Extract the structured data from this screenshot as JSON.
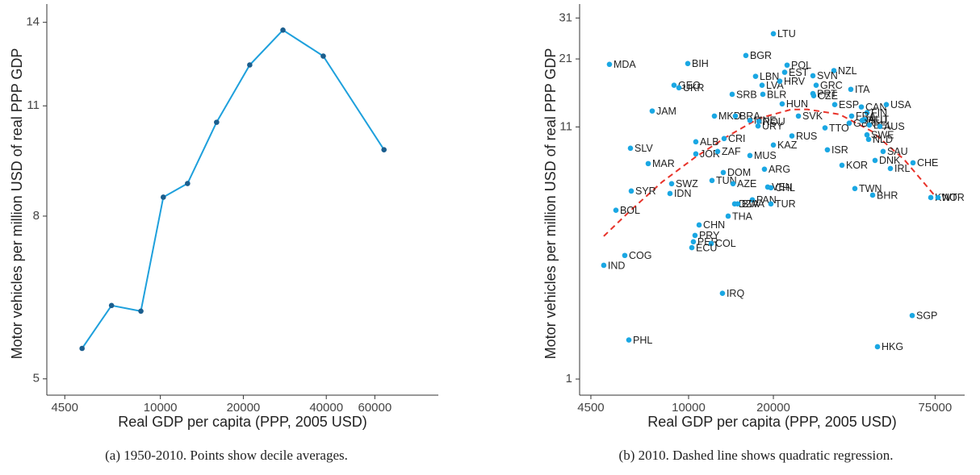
{
  "chart_data": [
    {
      "type": "line",
      "caption": "(a) 1950-2010. Points show decile averages.",
      "x_label": "Real GDP per capita (PPP, 2005 USD)",
      "y_label": "Motor vehicles per million USD of real PPP GDP",
      "log_x": true,
      "log_y": true,
      "line_color": "#1ea0dc",
      "point_color": "#1b5e8e",
      "xlim": [
        3873,
        102000
      ],
      "xticks": [
        4500,
        10000,
        20000,
        40000,
        60000
      ],
      "ylim": [
        4.77,
        14.76
      ],
      "yticks": [
        5,
        8,
        11,
        14
      ],
      "x": [
        5200,
        6650,
        8500,
        10250,
        12550,
        16000,
        21100,
        27850,
        39000,
        64780
      ],
      "y": [
        5.46,
        6.18,
        6.08,
        8.45,
        8.79,
        10.49,
        12.38,
        13.69,
        12.7,
        9.69
      ]
    },
    {
      "type": "scatter",
      "caption": "(b) 2010. Dashed line shows quadratic regression.",
      "x_label": "Real GDP per capita (PPP, 2005 USD)",
      "y_label": "Motor vehicles per million USD of real PPP GDP",
      "log_x": true,
      "log_y": true,
      "point_color": "#1aa7e3",
      "xlim": [
        4104,
        95500
      ],
      "xticks": [
        4500,
        10000,
        20000,
        75000
      ],
      "ylim": [
        0.858,
        35.4
      ],
      "yticks": [
        1,
        11,
        21,
        31
      ],
      "labels": [
        "LTU",
        "MDA",
        "BIH",
        "BGR",
        "POL",
        "EST",
        "NZL",
        "SVN",
        "LBN",
        "LVA",
        "HRV",
        "GEO",
        "UKR",
        "GRC",
        "ITA",
        "SRB",
        "BLR",
        "PRT",
        "CZE",
        "HUN",
        "ESP",
        "CAN",
        "USA",
        "JAM",
        "FIN",
        "MKD",
        "BRA",
        "SVK",
        "FRA",
        "AUT",
        "GBR",
        "DEU",
        "BEL",
        "AUS",
        "MNE",
        "ROU",
        "URY",
        "TTO",
        "SWE",
        "NLD",
        "RUS",
        "CRI",
        "ALB",
        "KAZ",
        "SLV",
        "ISR",
        "SAU",
        "JOR",
        "ZAF",
        "MUS",
        "CHE",
        "DNK",
        "MAR",
        "KOR",
        "IRL",
        "ARG",
        "DOM",
        "TUN",
        "AZE",
        "SWZ",
        "VEN",
        "CHL",
        "SYR",
        "TWN",
        "IDN",
        "BHR",
        "KWT",
        "NOR",
        "PAN",
        "DZA",
        "BWA",
        "TUR",
        "BOL",
        "THA",
        "CHN",
        "PRY",
        "PER",
        "COL",
        "ECU",
        "COG",
        "IND",
        "IRQ",
        "SGP",
        "PHL",
        "HKG"
      ],
      "x": [
        20000,
        5237,
        9935,
        15970,
        22370,
        21930,
        32800,
        27630,
        17290,
        18230,
        21070,
        8880,
        9240,
        28370,
        37660,
        14280,
        18350,
        27630,
        27810,
        21490,
        33020,
        41050,
        50350,
        7430,
        42980,
        12350,
        14660,
        24540,
        37910,
        42140,
        37170,
        41320,
        43830,
        47760,
        16510,
        17750,
        17640,
        30500,
        42980,
        43550,
        23270,
        13370,
        10610,
        20000,
        6219,
        31100,
        49030,
        10610,
        12680,
        16510,
        62610,
        45910,
        7190,
        35030,
        52040,
        18590,
        13280,
        12110,
        14380,
        8706,
        19090,
        19600,
        6260,
        38930,
        8590,
        45010,
        72400,
        76800,
        16840,
        14570,
        14950,
        19600,
        5522,
        13820,
        10900,
        10540,
        10400,
        12030,
        10270,
        5937,
        5000,
        13190,
        62200,
        6138,
        46830
      ],
      "y": [
        26.7,
        19.95,
        20.1,
        21.7,
        19.8,
        18.5,
        18.8,
        17.9,
        17.8,
        16.35,
        17.0,
        16.35,
        15.97,
        16.35,
        15.73,
        15.0,
        15.0,
        15.1,
        14.8,
        13.7,
        13.6,
        13.3,
        13.6,
        12.8,
        12.6,
        12.2,
        12.2,
        12.2,
        12.2,
        11.8,
        11.4,
        11.7,
        11.2,
        11.05,
        11.7,
        11.6,
        11.1,
        10.9,
        10.2,
        9.77,
        10.1,
        9.85,
        9.55,
        9.26,
        8.98,
        8.85,
        8.71,
        8.51,
        8.71,
        8.38,
        7.82,
        8.0,
        7.76,
        7.64,
        7.41,
        7.36,
        7.13,
        6.61,
        6.41,
        6.41,
        6.21,
        6.17,
        5.98,
        6.12,
        5.84,
        5.75,
        5.62,
        5.62,
        5.5,
        5.29,
        5.29,
        5.29,
        4.98,
        4.71,
        4.33,
        3.92,
        3.69,
        3.63,
        3.49,
        3.24,
        2.95,
        2.26,
        1.83,
        1.45,
        1.36
      ],
      "fit": {
        "color": "#e8332a",
        "dash": true,
        "x": [
          5000,
          6178,
          8043,
          10470,
          13630,
          17750,
          23120,
          26380,
          34350,
          44710,
          58210,
          75800
        ],
        "y": [
          3.89,
          4.93,
          6.51,
          8.19,
          10.0,
          11.93,
          12.98,
          13.0,
          12.4,
          10.55,
          8.07,
          5.62
        ]
      }
    }
  ]
}
